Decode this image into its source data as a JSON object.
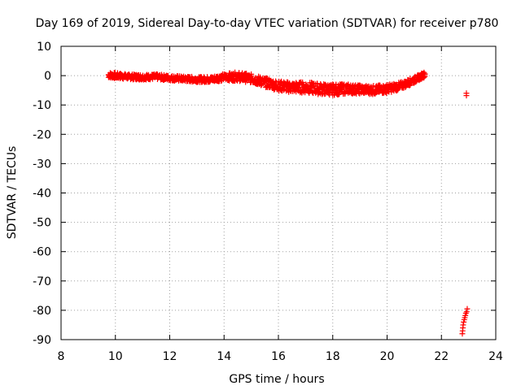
{
  "chart_data": {
    "type": "scatter",
    "title": "Day 169 of 2019, Sidereal Day-to-day VTEC variation (SDTVAR) for receiver p780",
    "xlabel": "GPS time / hours",
    "ylabel": "SDTVAR / TECUs",
    "xlim": [
      8,
      24
    ],
    "ylim": [
      -90,
      10
    ],
    "xticks": [
      8,
      10,
      12,
      14,
      16,
      18,
      20,
      22,
      24
    ],
    "yticks": [
      10,
      0,
      -10,
      -20,
      -30,
      -40,
      -50,
      -60,
      -70,
      -80,
      -90
    ],
    "grid": true,
    "marker": "+",
    "color": "#ff0000",
    "series": [
      {
        "name": "",
        "band": [
          {
            "x": 9.75,
            "y": 0.2,
            "spread": 2.0
          },
          {
            "x": 10.0,
            "y": 0.0,
            "spread": 2.0
          },
          {
            "x": 10.5,
            "y": -0.4,
            "spread": 1.8
          },
          {
            "x": 11.0,
            "y": -0.5,
            "spread": 1.8
          },
          {
            "x": 11.5,
            "y": -0.4,
            "spread": 1.8
          },
          {
            "x": 12.0,
            "y": -0.8,
            "spread": 1.8
          },
          {
            "x": 12.5,
            "y": -1.1,
            "spread": 1.8
          },
          {
            "x": 13.0,
            "y": -1.3,
            "spread": 1.8
          },
          {
            "x": 13.5,
            "y": -1.3,
            "spread": 2.0
          },
          {
            "x": 14.0,
            "y": -0.5,
            "spread": 2.4
          },
          {
            "x": 14.5,
            "y": -0.3,
            "spread": 3.0
          },
          {
            "x": 15.0,
            "y": -1.0,
            "spread": 3.0
          },
          {
            "x": 15.5,
            "y": -2.3,
            "spread": 3.2
          },
          {
            "x": 16.0,
            "y": -3.5,
            "spread": 3.4
          },
          {
            "x": 16.5,
            "y": -4.0,
            "spread": 3.6
          },
          {
            "x": 17.0,
            "y": -4.0,
            "spread": 3.8
          },
          {
            "x": 17.5,
            "y": -4.5,
            "spread": 3.8
          },
          {
            "x": 18.0,
            "y": -4.8,
            "spread": 3.8
          },
          {
            "x": 18.5,
            "y": -4.5,
            "spread": 3.4
          },
          {
            "x": 19.0,
            "y": -4.7,
            "spread": 3.0
          },
          {
            "x": 19.5,
            "y": -4.9,
            "spread": 3.0
          },
          {
            "x": 20.0,
            "y": -4.5,
            "spread": 3.0
          },
          {
            "x": 20.5,
            "y": -3.5,
            "spread": 2.6
          },
          {
            "x": 21.0,
            "y": -1.5,
            "spread": 2.2
          },
          {
            "x": 21.4,
            "y": 0.5,
            "spread": 1.8
          }
        ]
      },
      {
        "name": "",
        "points": [
          {
            "x": 22.92,
            "y": -6.0
          },
          {
            "x": 22.92,
            "y": -6.8
          },
          {
            "x": 22.95,
            "y": -79.5
          },
          {
            "x": 22.93,
            "y": -80.5
          },
          {
            "x": 22.9,
            "y": -81.0
          },
          {
            "x": 22.88,
            "y": -81.8
          },
          {
            "x": 22.86,
            "y": -82.5
          },
          {
            "x": 22.84,
            "y": -83.2
          },
          {
            "x": 22.82,
            "y": -84.0
          },
          {
            "x": 22.8,
            "y": -85.0
          },
          {
            "x": 22.79,
            "y": -86.0
          },
          {
            "x": 22.78,
            "y": -87.0
          },
          {
            "x": 22.77,
            "y": -88.0
          }
        ]
      }
    ]
  }
}
